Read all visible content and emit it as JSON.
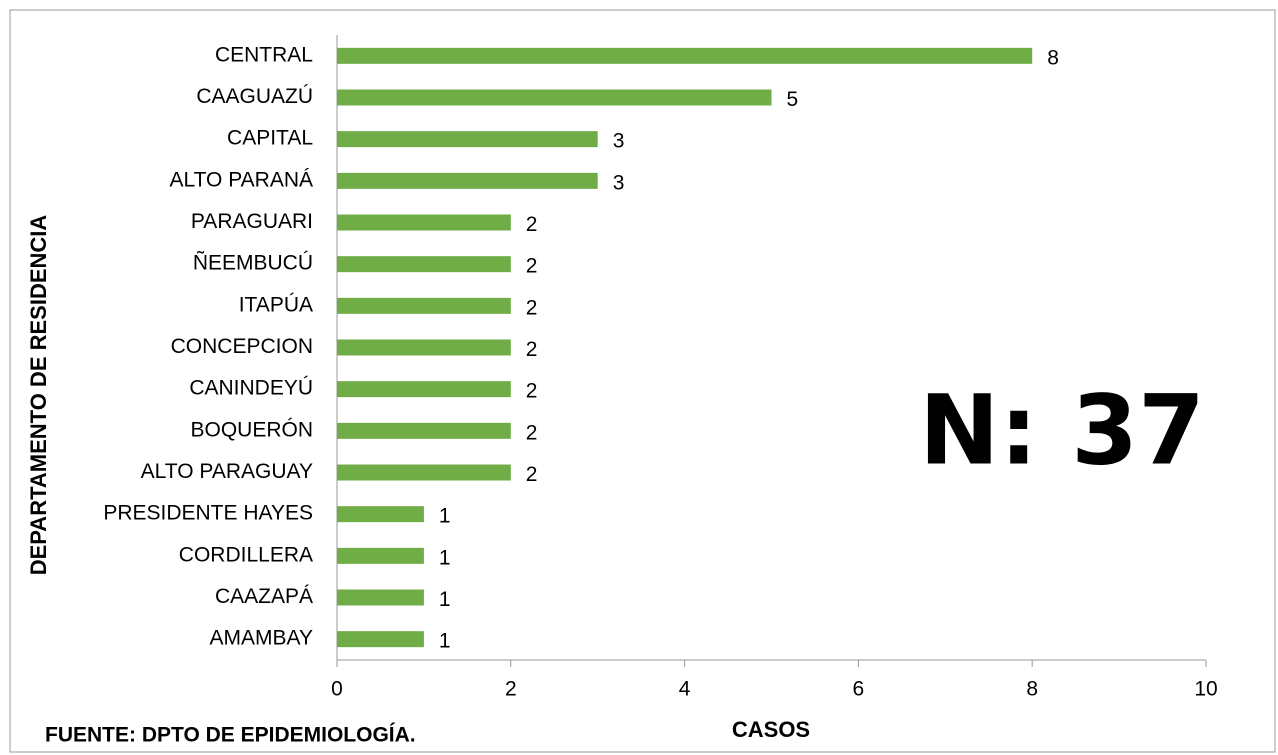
{
  "chart_data": {
    "type": "bar",
    "categories": [
      "CENTRAL",
      "CAAGUAZÚ",
      "CAPITAL",
      "ALTO PARANÁ",
      "PARAGUARI",
      "ÑEEMBUCÚ",
      "ITAPÚA",
      "CONCEPCION",
      "CANINDEYÚ",
      "BOQUERÓN",
      "ALTO PARAGUAY",
      "PRESIDENTE HAYES",
      "CORDILLERA",
      "CAAZAPÁ",
      "AMAMBAY"
    ],
    "values": [
      8,
      5,
      3,
      3,
      2,
      2,
      2,
      2,
      2,
      2,
      2,
      1,
      1,
      1,
      1
    ],
    "color": "#70ad47",
    "xlim": [
      0,
      10
    ],
    "xticks": [
      0,
      2,
      4,
      6,
      8,
      10
    ],
    "x_label": "CASOS",
    "y_label": "DEPARTAMENTO DE RESIDENCIA",
    "annotation": "N: 37",
    "source": "FUENTE: DPTO DE EPIDEMIOLOGÍA."
  }
}
